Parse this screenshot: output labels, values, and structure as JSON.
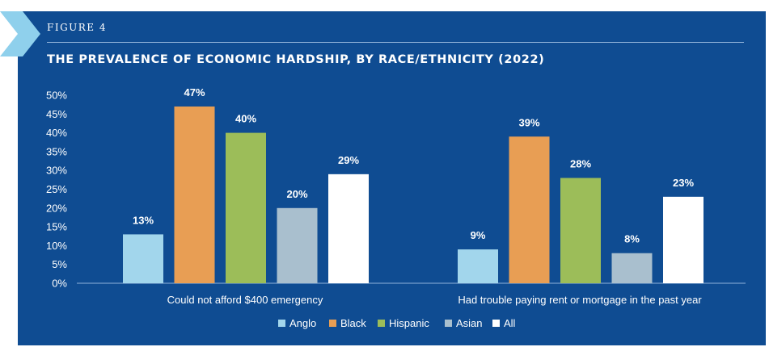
{
  "figure_label": "FIGURE 4",
  "chart_data": {
    "type": "bar",
    "title": "THE PREVALENCE OF ECONOMIC HARDSHIP, BY RACE/ETHNICITY (2022)",
    "categories": [
      "Could not afford $400 emergency",
      "Had trouble paying rent or mortgage in the past year"
    ],
    "series": [
      {
        "name": "Anglo",
        "values": [
          13,
          9
        ],
        "labels": [
          "13%",
          "9%"
        ],
        "color": "#a2d6ec"
      },
      {
        "name": "Black",
        "values": [
          47,
          39
        ],
        "labels": [
          "47%",
          "39%"
        ],
        "color": "#e89e54"
      },
      {
        "name": "Hispanic",
        "values": [
          40,
          28
        ],
        "labels": [
          "40%",
          "28%"
        ],
        "color": "#9cbd59"
      },
      {
        "name": "Asian",
        "values": [
          20,
          8
        ],
        "labels": [
          "20%",
          "8%"
        ],
        "color": "#a9bfce"
      },
      {
        "name": "All",
        "values": [
          29,
          23
        ],
        "labels": [
          "29%",
          "23%"
        ],
        "color": "#ffffff"
      }
    ],
    "ylim": [
      0,
      50
    ],
    "yticks": [
      "0%",
      "5%",
      "10%",
      "15%",
      "20%",
      "25%",
      "30%",
      "35%",
      "40%",
      "45%",
      "50%"
    ],
    "grid": false,
    "legend_position": "bottom"
  },
  "colors": {
    "panel": "#0f4c92",
    "chevron": "#8fd0ec",
    "rule": "#8fb2d9"
  }
}
